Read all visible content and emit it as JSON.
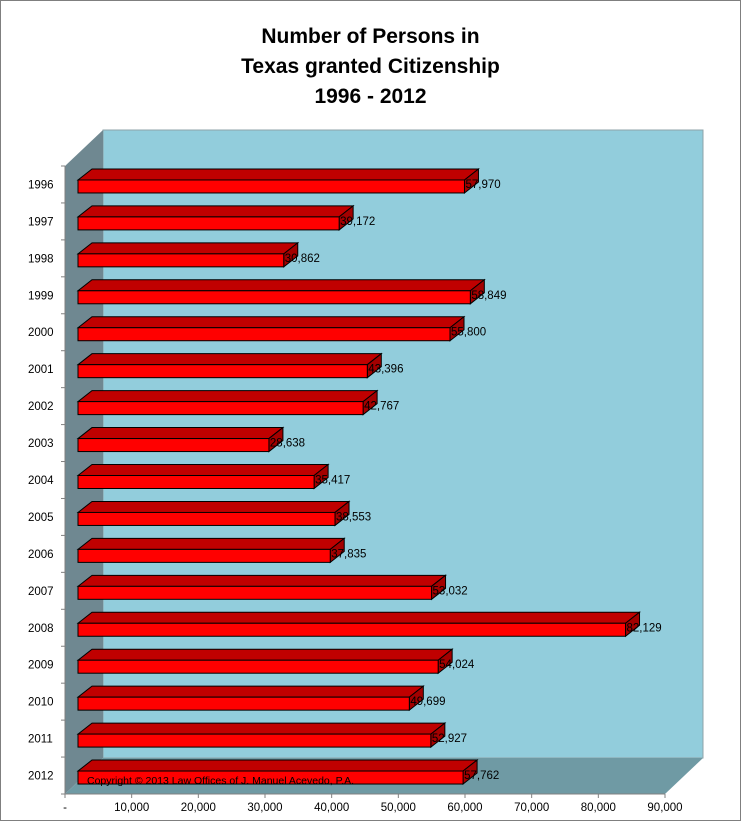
{
  "chart_data": {
    "type": "bar",
    "orientation": "horizontal",
    "style": "3d",
    "title_lines": [
      "Number of Persons in",
      "Texas granted Citizenship",
      "1996 - 2012"
    ],
    "categories": [
      "1996",
      "1997",
      "1998",
      "1999",
      "2000",
      "2001",
      "2002",
      "2003",
      "2004",
      "2005",
      "2006",
      "2007",
      "2008",
      "2009",
      "2010",
      "2011",
      "2012"
    ],
    "values": [
      57970,
      39172,
      30862,
      58849,
      55800,
      43396,
      42767,
      28638,
      35417,
      38553,
      37835,
      53032,
      82129,
      54024,
      49699,
      52927,
      57762
    ],
    "value_labels": [
      "57,970",
      "39,172",
      "30,862",
      "58,849",
      "55,800",
      "43,396",
      "42,767",
      "28,638",
      "35,417",
      "38,553",
      "37,835",
      "53,032",
      "82,129",
      "54,024",
      "49,699",
      "52,927",
      "57,762"
    ],
    "x_ticks": [
      "-",
      "10,000",
      "20,000",
      "30,000",
      "40,000",
      "50,000",
      "60,000",
      "70,000",
      "80,000",
      "90,000"
    ],
    "xlim": [
      0,
      90000
    ],
    "grid": false,
    "legend": "none",
    "annotation": "Copyright © 2013 Law Offices of J. Manuel Acevedo, P.A.",
    "colors": {
      "bar_front": "#ff0000",
      "bar_top": "#c00000",
      "bar_side": "#a30000",
      "back_wall": "#92cddc",
      "side_wall": "#6f8891",
      "floor": "#6f9aa4"
    }
  }
}
